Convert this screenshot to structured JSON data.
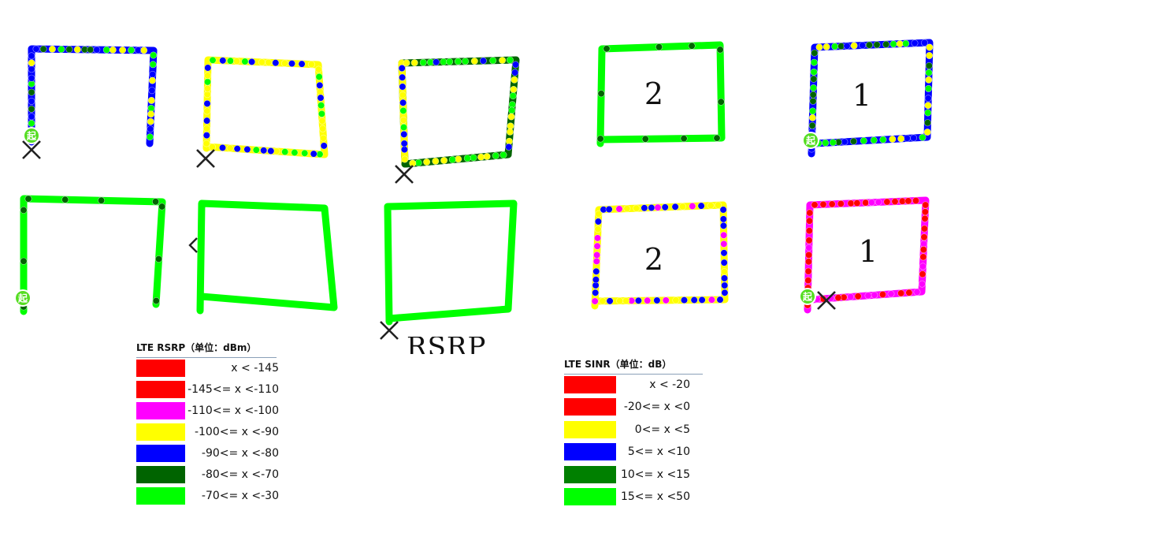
{
  "colors": {
    "red": "#ff0000",
    "magenta": "#ff00ff",
    "yellow": "#ffff00",
    "blue": "#0000ff",
    "dark_green": "#006400",
    "green": "#00ff00",
    "sinr_green": "#008000",
    "marker_green": "#55dd22",
    "end_marker": "#222222"
  },
  "icons": {
    "start": "start-marker-icon",
    "end": "end-marker-icon"
  },
  "map": {
    "start_glyph": "起",
    "route_labels": [
      "2",
      "1",
      "2",
      "1"
    ],
    "fragment_text": "RSRP"
  },
  "legend_rsrp": {
    "title": "LTE RSRP（单位：dBm）",
    "items": [
      {
        "label": "x < -145",
        "color": "#ff0000"
      },
      {
        "label": "-145<= x <-110",
        "color": "#ff0000"
      },
      {
        "label": "-110<= x <-100",
        "color": "#ff00ff"
      },
      {
        "label": "-100<= x <-90",
        "color": "#ffff00"
      },
      {
        "label": "-90<= x <-80",
        "color": "#0000ff"
      },
      {
        "label": "-80<= x <-70",
        "color": "#006400"
      },
      {
        "label": "-70<= x <-30",
        "color": "#00ff00"
      }
    ]
  },
  "legend_sinr": {
    "title": "LTE SINR（单位：dB）",
    "items": [
      {
        "label": "x < -20",
        "color": "#ff0000"
      },
      {
        "label": "-20<= x <0",
        "color": "#ff0000"
      },
      {
        "label": "0<= x <5",
        "color": "#ffff00"
      },
      {
        "label": "5<= x <10",
        "color": "#0000ff"
      },
      {
        "label": "10<= x <15",
        "color": "#008000"
      },
      {
        "label": "15<= x <50",
        "color": "#00ff00"
      }
    ]
  }
}
